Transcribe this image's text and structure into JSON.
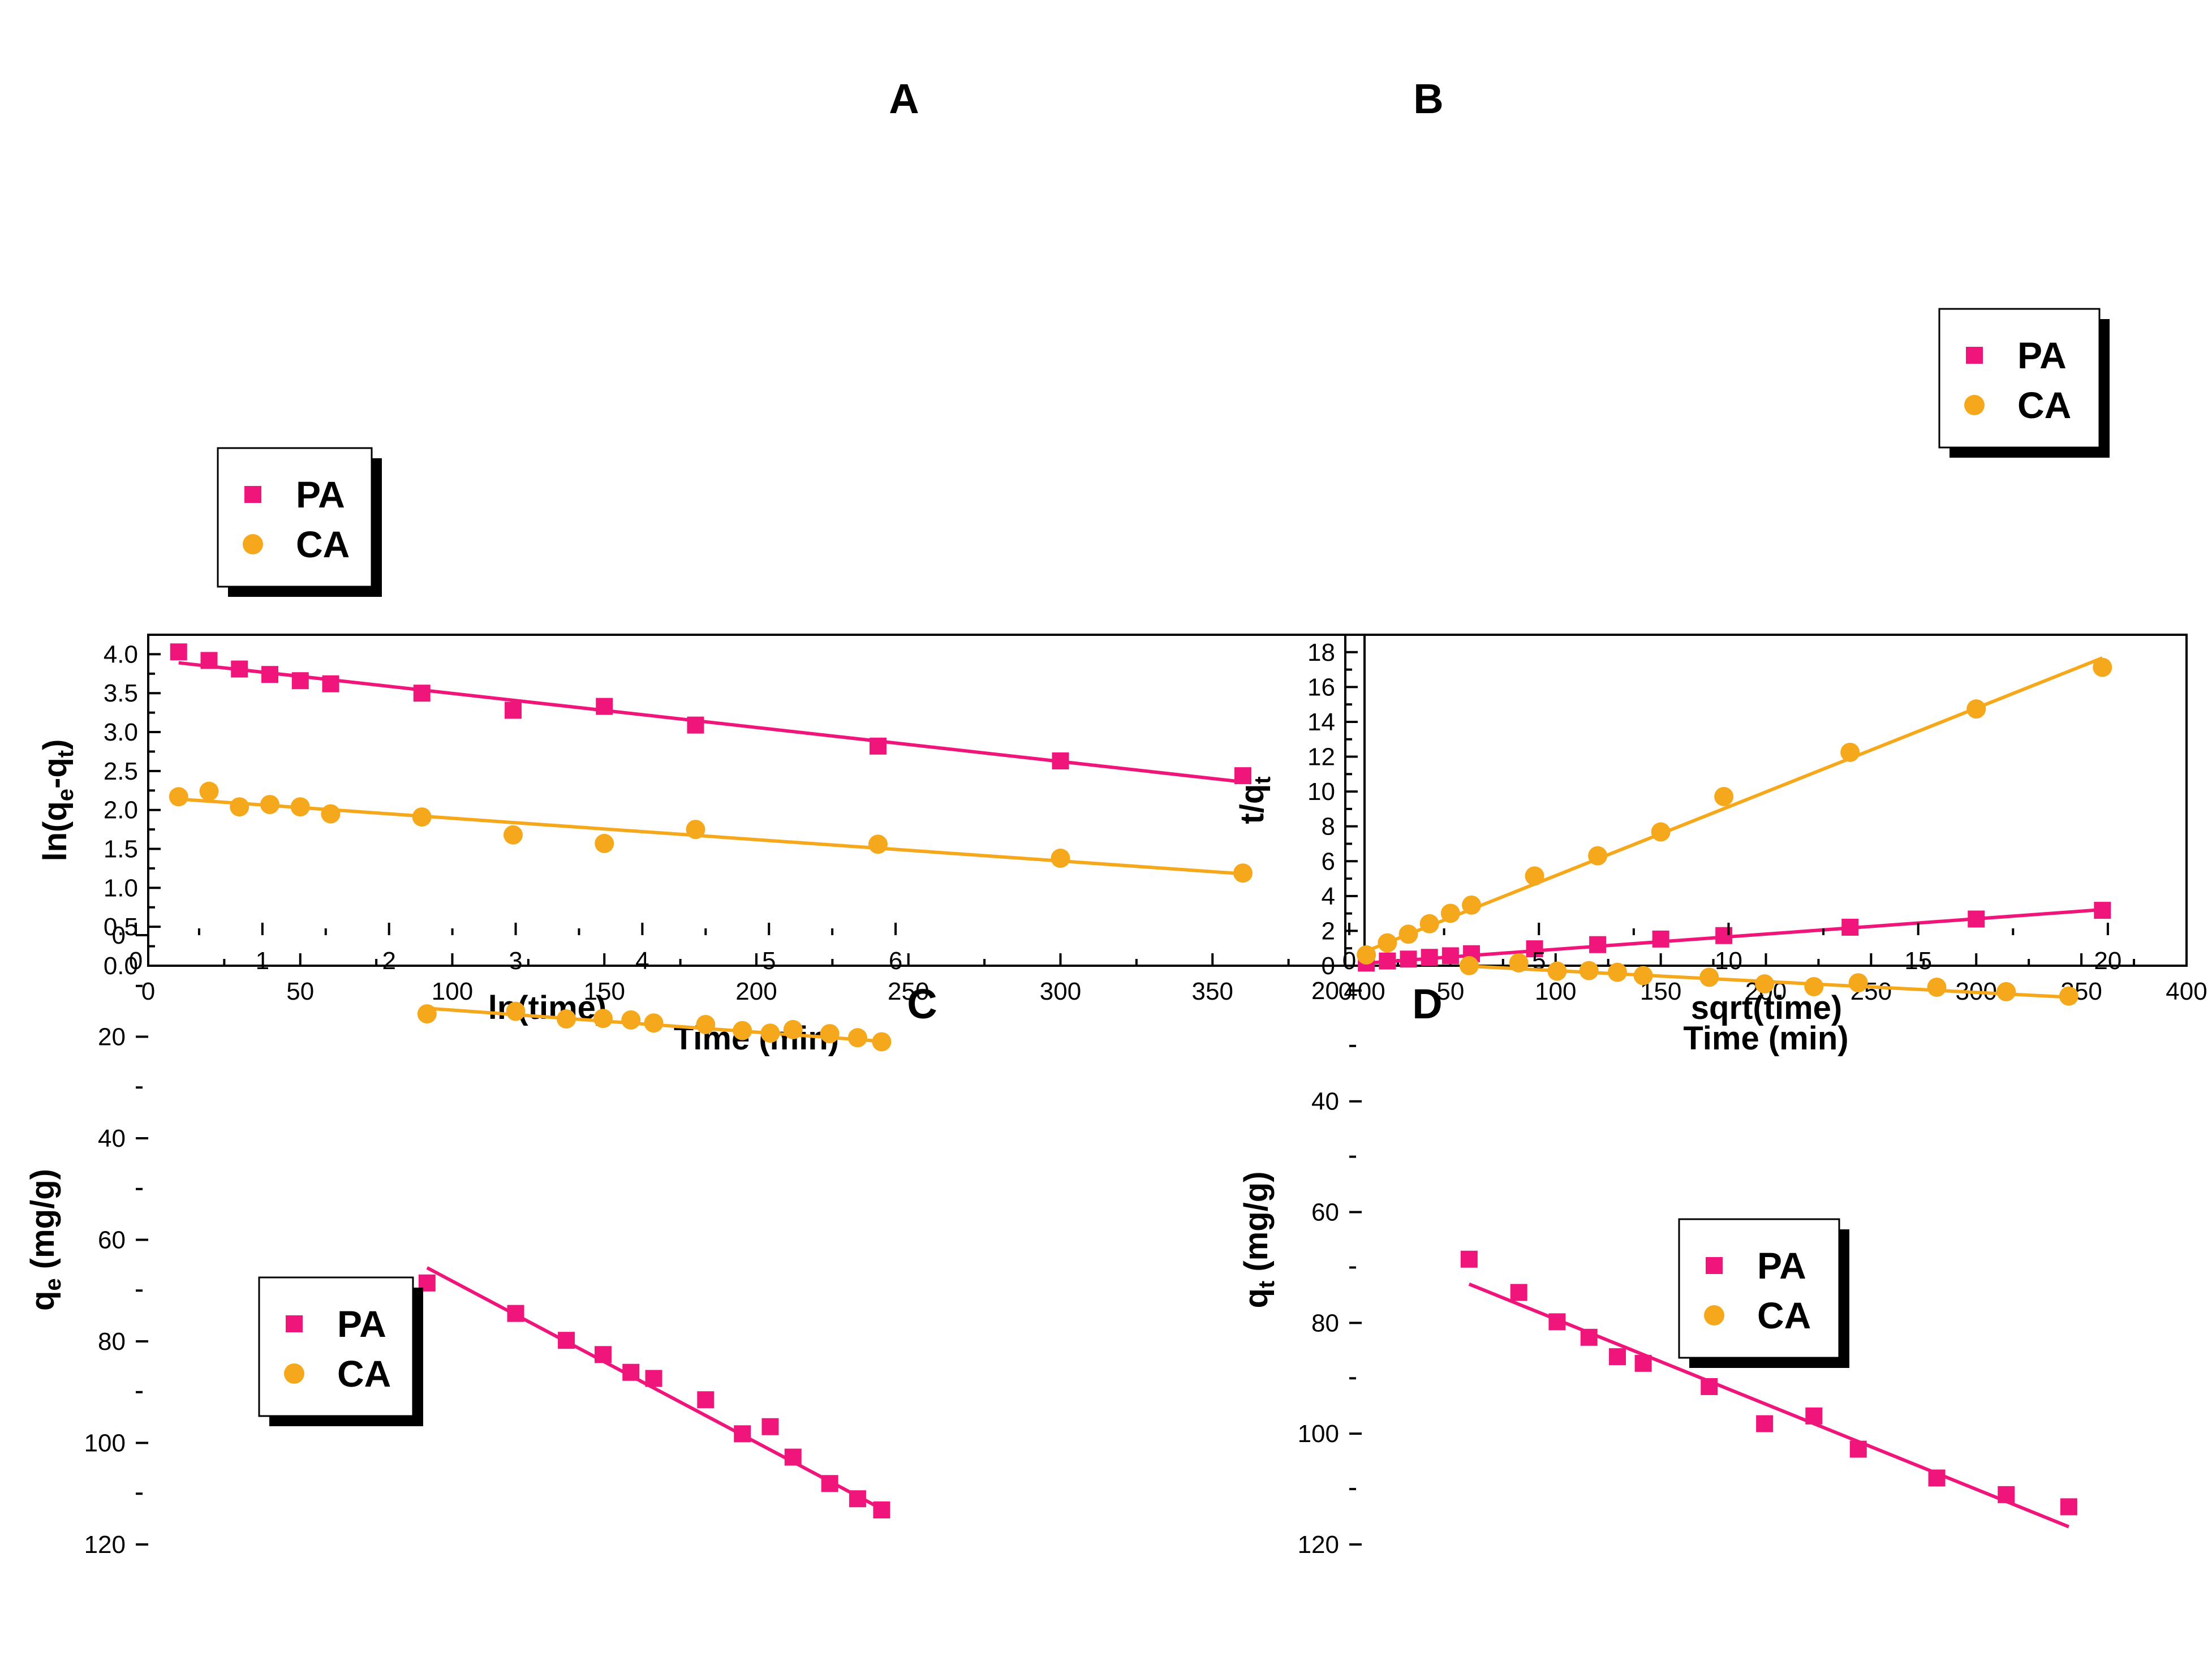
{
  "colors": {
    "pa": "#F0157A",
    "ca": "#F5A81C",
    "axis": "#000000",
    "background": "#FFFFFF"
  },
  "chart_data": [
    {
      "id": "A",
      "type": "scatter",
      "panel_label": "A",
      "xlabel": "Time (min)",
      "ylabel": {
        "main": "ln(q",
        "sub1": "e",
        "mid": "-q",
        "sub2": "t",
        "end": ")"
      },
      "xlim": [
        0,
        400
      ],
      "ylim": [
        0.0,
        4.25
      ],
      "xticks": [
        0,
        50,
        100,
        150,
        200,
        250,
        300,
        350,
        400
      ],
      "xtick_labels": [
        "0",
        "50",
        "100",
        "150",
        "200",
        "250",
        "300",
        "350",
        "400"
      ],
      "yticks": [
        0.0,
        0.5,
        1.0,
        1.5,
        2.0,
        2.5,
        3.0,
        3.5,
        4.0
      ],
      "ytick_labels": [
        "0.0",
        "0.5",
        "1.0",
        "1.5",
        "2.0",
        "2.5",
        "3.0",
        "3.5",
        "4.0"
      ],
      "legend_position": "bottom-left",
      "series": [
        {
          "name": "PA",
          "marker": "square",
          "color": "pa",
          "x": [
            10,
            20,
            30,
            40,
            50,
            60,
            90,
            120,
            150,
            180,
            240,
            300,
            360
          ],
          "y": [
            4.03,
            3.92,
            3.81,
            3.74,
            3.66,
            3.62,
            3.5,
            3.28,
            3.33,
            3.09,
            2.82,
            2.63,
            2.44
          ],
          "fit": [
            [
              10,
              3.89
            ],
            [
              360,
              2.36
            ]
          ]
        },
        {
          "name": "CA",
          "marker": "circle",
          "color": "ca",
          "x": [
            10,
            20,
            30,
            40,
            50,
            60,
            90,
            120,
            150,
            180,
            240,
            300,
            360
          ],
          "y": [
            2.17,
            2.24,
            2.04,
            2.07,
            2.04,
            1.95,
            1.91,
            1.68,
            1.57,
            1.75,
            1.56,
            1.38,
            1.19
          ],
          "fit": [
            [
              10,
              2.14
            ],
            [
              360,
              1.18
            ]
          ]
        }
      ]
    },
    {
      "id": "B",
      "type": "scatter",
      "panel_label": "B",
      "xlabel": "Time (min)",
      "ylabel": {
        "main": "t/q",
        "sub1": "t"
      },
      "xlim": [
        0,
        400
      ],
      "ylim": [
        0,
        19
      ],
      "xticks": [
        0,
        50,
        100,
        150,
        200,
        250,
        300,
        350,
        400
      ],
      "xtick_labels": [
        "0",
        "50",
        "100",
        "150",
        "200",
        "250",
        "300",
        "350",
        "400"
      ],
      "yticks": [
        0,
        2,
        4,
        6,
        8,
        10,
        12,
        14,
        16,
        18
      ],
      "ytick_labels": [
        "0",
        "2",
        "4",
        "6",
        "8",
        "10",
        "12",
        "14",
        "16",
        "18"
      ],
      "legend_position": "right",
      "series": [
        {
          "name": "PA",
          "marker": "square",
          "color": "pa",
          "x": [
            10,
            20,
            30,
            40,
            50,
            60,
            90,
            120,
            150,
            180,
            240,
            300,
            360
          ],
          "y": [
            0.15,
            0.27,
            0.38,
            0.48,
            0.57,
            0.69,
            0.97,
            1.21,
            1.53,
            1.73,
            2.21,
            2.68,
            3.18
          ],
          "fit": [
            [
              10,
              0.15
            ],
            [
              360,
              3.22
            ]
          ]
        },
        {
          "name": "CA",
          "marker": "circle",
          "color": "ca",
          "x": [
            10,
            20,
            30,
            40,
            50,
            60,
            90,
            120,
            150,
            180,
            240,
            300,
            360
          ],
          "y": [
            0.62,
            1.31,
            1.81,
            2.41,
            3.01,
            3.48,
            5.15,
            6.31,
            7.68,
            9.71,
            12.25,
            14.74,
            17.13
          ],
          "fit": [
            [
              10,
              0.84
            ],
            [
              360,
              17.67
            ]
          ]
        }
      ]
    },
    {
      "id": "C",
      "type": "scatter",
      "panel_label": "C",
      "xlabel": "ln(time)",
      "ylabel": {
        "main": "q",
        "sub1": "e",
        "end": " (mg/g)"
      },
      "xlim": [
        0,
        6.5
      ],
      "ylim": [
        0,
        120
      ],
      "xticks": [
        0,
        1,
        2,
        3,
        4,
        5,
        6
      ],
      "xtick_labels": [
        "0",
        "1",
        "2",
        "3",
        "4",
        "5",
        "6"
      ],
      "yticks": [
        0,
        20,
        40,
        60,
        80,
        100,
        120
      ],
      "ytick_labels": [
        "0",
        "20",
        "40",
        "60",
        "80",
        "100",
        "120"
      ],
      "legend_position": "left",
      "series": [
        {
          "name": "PA",
          "marker": "square",
          "color": "pa",
          "x": [
            2.3,
            3.0,
            3.4,
            3.69,
            3.91,
            4.09,
            4.5,
            4.79,
            5.01,
            5.19,
            5.48,
            5.7,
            5.89
          ],
          "y": [
            68.5,
            74.5,
            79.8,
            82.6,
            86.1,
            87.3,
            91.5,
            98.2,
            96.8,
            102.8,
            108.0,
            111.0,
            113.2
          ],
          "fit": [
            [
              2.3,
              65.5
            ],
            [
              5.89,
              113.0
            ]
          ]
        },
        {
          "name": "CA",
          "marker": "circle",
          "color": "ca",
          "x": [
            2.3,
            3.0,
            3.4,
            3.69,
            3.91,
            4.09,
            4.5,
            4.79,
            5.01,
            5.19,
            5.48,
            5.7,
            5.89
          ],
          "y": [
            15.5,
            15.0,
            16.5,
            16.4,
            16.7,
            17.3,
            17.6,
            18.8,
            19.3,
            18.6,
            19.4,
            20.2,
            21.0
          ],
          "fit": [
            [
              2.3,
              14.4
            ],
            [
              5.89,
              20.9
            ]
          ]
        }
      ]
    },
    {
      "id": "D",
      "type": "scatter",
      "panel_label": "D",
      "xlabel": "sqrt(time)",
      "ylabel": {
        "main": "q",
        "sub1": "t",
        "end": " (mg/g)"
      },
      "xlim": [
        0,
        22
      ],
      "ylim": [
        10,
        120
      ],
      "xticks": [
        0,
        5,
        10,
        15,
        20
      ],
      "xtick_labels": [
        "0",
        "5",
        "10",
        "15",
        "20"
      ],
      "yticks": [
        20,
        40,
        60,
        80,
        100,
        120
      ],
      "ytick_labels": [
        "20",
        "40",
        "60",
        "80",
        "100",
        "120"
      ],
      "legend_position": "center",
      "series": [
        {
          "name": "PA",
          "marker": "square",
          "color": "pa",
          "x": [
            3.16,
            4.47,
            5.48,
            6.32,
            7.07,
            7.75,
            9.49,
            10.95,
            12.25,
            13.42,
            15.49,
            17.32,
            18.97
          ],
          "y": [
            68.5,
            74.5,
            79.8,
            82.6,
            86.1,
            87.3,
            91.5,
            98.2,
            96.8,
            102.8,
            108.0,
            111.0,
            113.2
          ],
          "fit": [
            [
              3.16,
              73.0
            ],
            [
              18.97,
              116.8
            ]
          ]
        },
        {
          "name": "CA",
          "marker": "circle",
          "color": "ca",
          "x": [
            3.16,
            4.47,
            5.48,
            6.32,
            7.07,
            7.75,
            9.49,
            10.95,
            12.25,
            13.42,
            15.49,
            17.32,
            18.97
          ],
          "y": [
            15.5,
            15.0,
            16.5,
            16.4,
            16.7,
            17.3,
            17.6,
            18.8,
            19.3,
            18.6,
            19.4,
            20.2,
            21.0
          ],
          "fit": [
            [
              3.16,
              15.6
            ],
            [
              18.97,
              21.2
            ]
          ]
        }
      ]
    }
  ]
}
